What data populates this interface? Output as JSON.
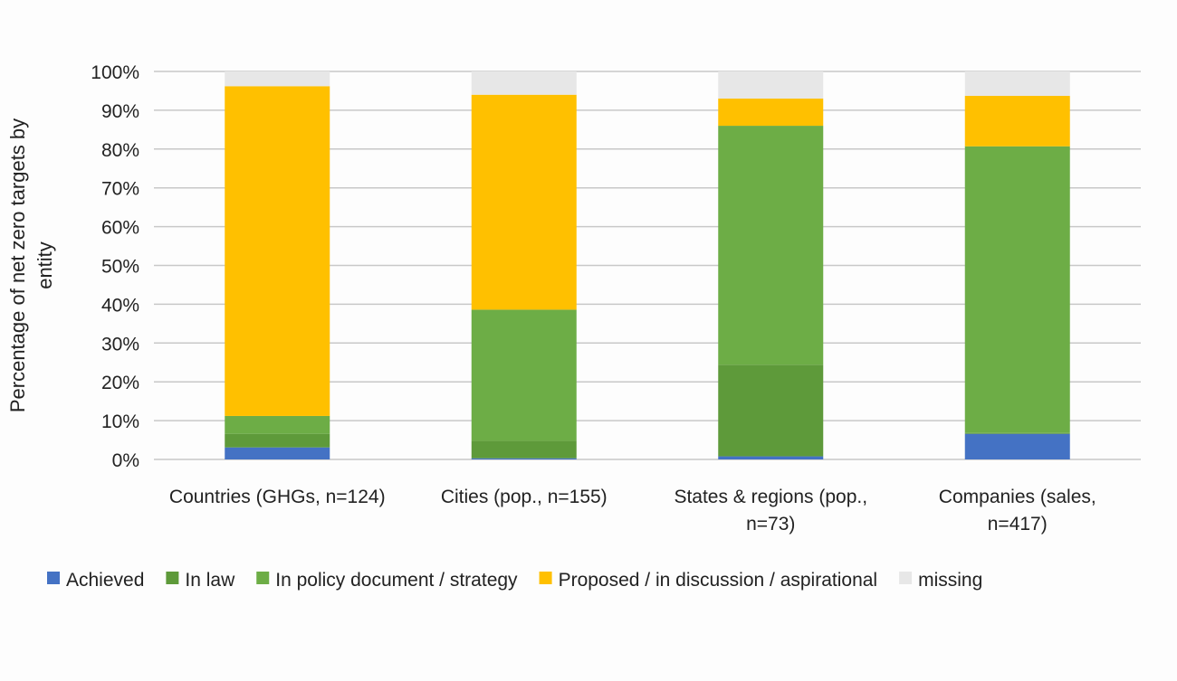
{
  "chart_data": {
    "type": "bar",
    "stacked": true,
    "title": "",
    "xlabel": "",
    "ylabel": "Percentage of net zero targets by entity",
    "ylim": [
      0,
      100
    ],
    "yticks": [
      "0%",
      "10%",
      "20%",
      "30%",
      "40%",
      "50%",
      "60%",
      "70%",
      "80%",
      "90%",
      "100%"
    ],
    "grid": true,
    "legend_position": "bottom",
    "categories": [
      [
        "Countries (GHGs, n=124)"
      ],
      [
        "Cities (pop., n=155)"
      ],
      [
        "States & regions (pop.,",
        "n=73)"
      ],
      [
        "Companies (sales,",
        "n=417)"
      ]
    ],
    "series": [
      {
        "name": "Achieved",
        "color": "#4472C4",
        "values": [
          3.1,
          0.3,
          0.8,
          6.6
        ]
      },
      {
        "name": "In law",
        "color": "#5E9A3A",
        "values": [
          3.5,
          4.5,
          23.6,
          0.2
        ]
      },
      {
        "name": "In policy document  / strategy",
        "color": "#6DAD46",
        "values": [
          4.6,
          33.8,
          61.6,
          73.9
        ]
      },
      {
        "name": "Proposed / in discussion / aspirational",
        "color": "#FFC000",
        "values": [
          85.0,
          55.4,
          7.0,
          13.0
        ]
      },
      {
        "name": "missing",
        "color": "#E7E7E7",
        "values": [
          3.8,
          6.0,
          7.0,
          6.3
        ]
      }
    ]
  }
}
